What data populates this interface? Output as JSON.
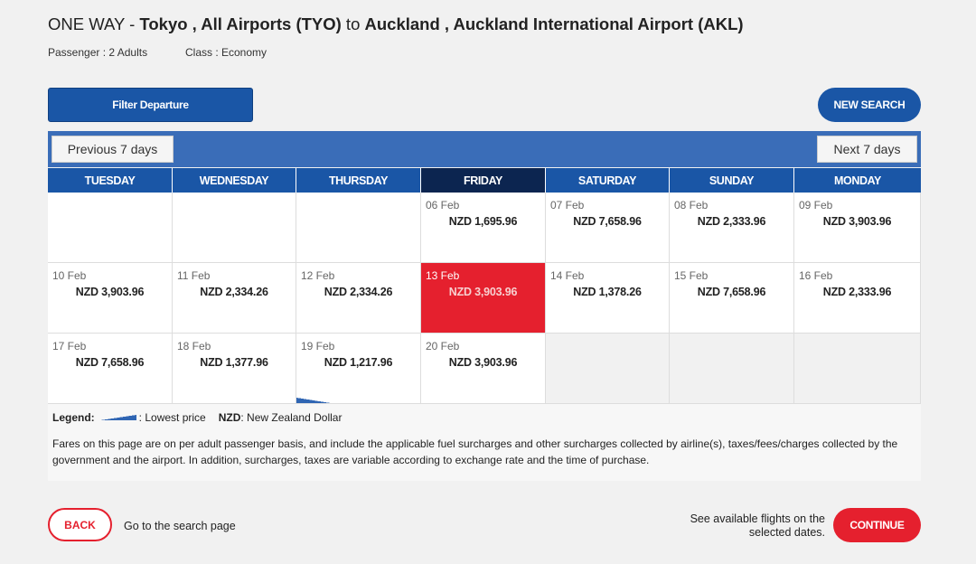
{
  "header": {
    "trip_type": "ONE WAY - ",
    "origin": "Tokyo , All Airports (TYO)",
    "connector": " to ",
    "destination": "Auckland , Auckland International Airport (AKL)",
    "passenger": "Passenger : 2 Adults",
    "class": "Class : Economy"
  },
  "toolbar": {
    "filter_label": "Filter Departure",
    "new_search_label": "NEW SEARCH"
  },
  "calendar": {
    "prev_label": "Previous 7 days",
    "next_label": "Next 7 days",
    "days": [
      "TUESDAY",
      "WEDNESDAY",
      "THURSDAY",
      "FRIDAY",
      "SATURDAY",
      "SUNDAY",
      "MONDAY"
    ],
    "active_day": "FRIDAY",
    "weeks": [
      [
        {
          "date": "",
          "price": ""
        },
        {
          "date": "",
          "price": ""
        },
        {
          "date": "",
          "price": ""
        },
        {
          "date": "06 Feb",
          "price": "NZD 1,695.96"
        },
        {
          "date": "07 Feb",
          "price": "NZD 7,658.96"
        },
        {
          "date": "08 Feb",
          "price": "NZD 2,333.96"
        },
        {
          "date": "09 Feb",
          "price": "NZD 3,903.96"
        }
      ],
      [
        {
          "date": "10 Feb",
          "price": "NZD 3,903.96"
        },
        {
          "date": "11 Feb",
          "price": "NZD 2,334.26"
        },
        {
          "date": "12 Feb",
          "price": "NZD 2,334.26"
        },
        {
          "date": "13 Feb",
          "price": "NZD 3,903.96",
          "selected": true
        },
        {
          "date": "14 Feb",
          "price": "NZD 1,378.26"
        },
        {
          "date": "15 Feb",
          "price": "NZD 7,658.96"
        },
        {
          "date": "16 Feb",
          "price": "NZD 2,333.96"
        }
      ],
      [
        {
          "date": "17 Feb",
          "price": "NZD 7,658.96"
        },
        {
          "date": "18 Feb",
          "price": "NZD 1,377.96"
        },
        {
          "date": "19 Feb",
          "price": "NZD 1,217.96",
          "lowest": true
        },
        {
          "date": "20 Feb",
          "price": "NZD 3,903.96"
        },
        {
          "date": "",
          "price": ""
        },
        {
          "date": "",
          "price": ""
        },
        {
          "date": "",
          "price": ""
        }
      ]
    ]
  },
  "legend": {
    "label": "Legend:",
    "lowest_text": ": Lowest price",
    "nzd_key": "NZD",
    "nzd_text": ": New Zealand Dollar",
    "note": "Fares on this page are on per adult passenger basis, and include the applicable fuel surcharges and other surcharges collected by airline(s), taxes/fees/charges collected by the government and the airport. In addition, surcharges, taxes are variable according to exchange rate and the time of purchase."
  },
  "footer": {
    "back_label": "BACK",
    "back_text": "Go to the search page",
    "continue_text": "See available flights on the selected dates.",
    "continue_label": "CONTINUE"
  },
  "colors": {
    "brand_blue": "#1a56a6",
    "active_day": "#0c2550",
    "selected_red": "#e5202e"
  }
}
